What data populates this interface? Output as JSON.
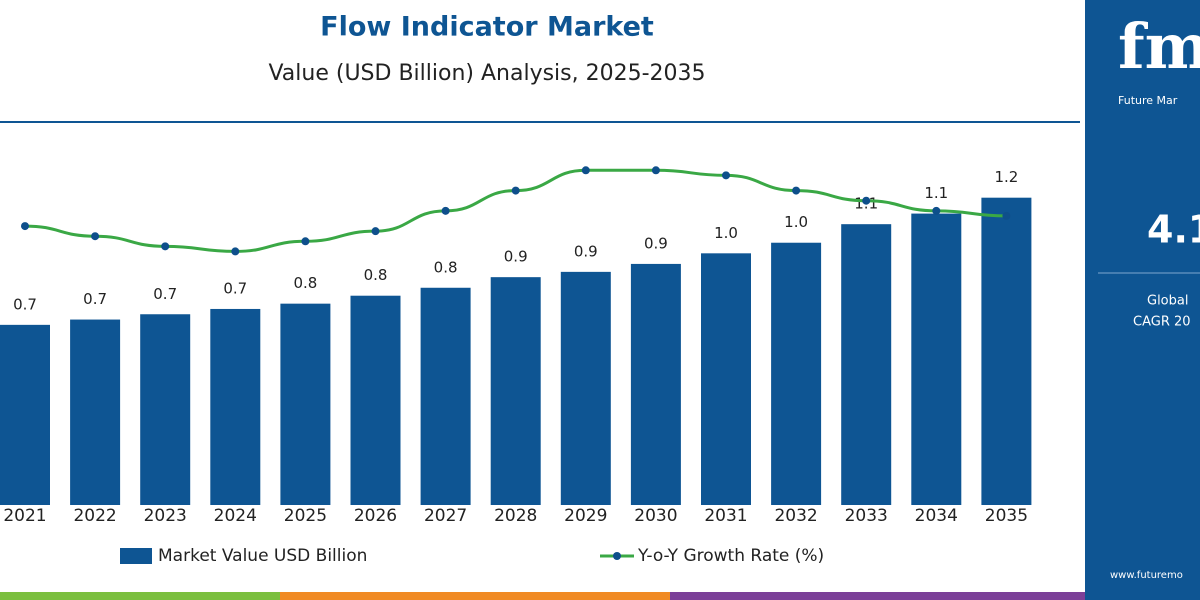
{
  "chart_data": {
    "type": "combo",
    "title": "Flow Indicator Market",
    "subtitle": "Value (USD Billion) Analysis, 2025-2035",
    "categories": [
      "2021",
      "2022",
      "2023",
      "2024",
      "2025",
      "2026",
      "2027",
      "2028",
      "2029",
      "2030",
      "2031",
      "2032",
      "2033",
      "2034",
      "2035"
    ],
    "series": [
      {
        "name": "Market Value USD Billion",
        "type": "bar",
        "color": "#0e5593",
        "values": [
          0.68,
          0.7,
          0.72,
          0.74,
          0.76,
          0.79,
          0.82,
          0.86,
          0.88,
          0.91,
          0.95,
          0.99,
          1.06,
          1.1,
          1.16
        ],
        "value_labels": [
          "0.7",
          "0.7",
          "0.7",
          "0.7",
          "0.8",
          "0.8",
          "0.8",
          "0.9",
          "0.9",
          "0.9",
          "1.0",
          "1.0",
          "1.1",
          "1.1",
          "1.2"
        ]
      },
      {
        "name": "Y-o-Y Growth Rate (%)",
        "type": "line",
        "axis": "y2",
        "color": "#3aa845",
        "marker_color": "#0e4f8b",
        "values": [
          5.5,
          5.3,
          5.1,
          5.0,
          5.2,
          5.4,
          5.8,
          6.2,
          6.6,
          6.6,
          6.5,
          6.2,
          6.0,
          5.8,
          5.7
        ]
      }
    ],
    "ylim": [
      0,
      1.34
    ],
    "y2lim": [
      0,
      7
    ],
    "grid": false,
    "legend": "bottom"
  },
  "panel": {
    "logo": "fmi",
    "brand": "Future Mar",
    "cagr_value": "4.1",
    "label_1": "Global",
    "label_2": "CAGR 20",
    "website": "www.futuremo"
  }
}
